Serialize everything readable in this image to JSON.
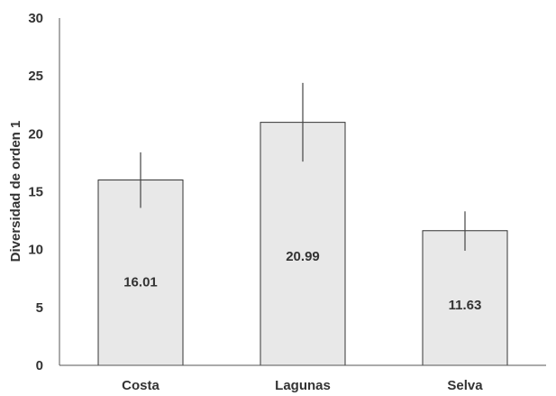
{
  "chart_data": {
    "type": "bar",
    "title": "",
    "xlabel": "",
    "ylabel": "Diversidad de orden 1",
    "categories": [
      "Costa",
      "Lagunas",
      "Selva"
    ],
    "values": [
      16.01,
      20.99,
      11.63
    ],
    "value_labels": [
      "16.01",
      "20.99",
      "11.63"
    ],
    "error_low": [
      13.6,
      17.6,
      9.9
    ],
    "error_high": [
      18.4,
      24.4,
      13.3
    ],
    "ylim": [
      0,
      30
    ],
    "yticks": [
      "0",
      "5",
      "10",
      "15",
      "20",
      "25",
      "30"
    ],
    "grid": false,
    "legend": "none",
    "bar_fill": "#e8e8e8",
    "bar_stroke": "#333333",
    "axis_color": "#555555",
    "error_color": "#444444"
  }
}
